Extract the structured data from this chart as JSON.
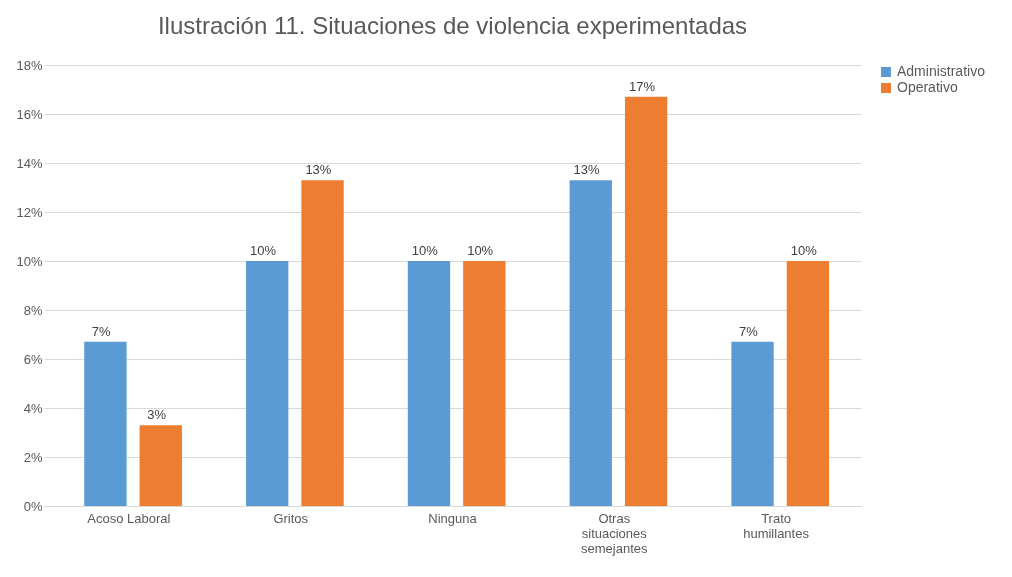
{
  "chart_data": {
    "type": "bar",
    "title": "Ilustración 11. Situaciones de violencia experimentadas",
    "categories": [
      "Acoso Laboral",
      "Gritos",
      "Ninguna",
      "Otras situaciones semejantes",
      "Trato humillantes"
    ],
    "series": [
      {
        "name": "Administrativo",
        "color": "#5b9bd5",
        "values": [
          6.7,
          10,
          10,
          13.3,
          6.7
        ],
        "value_labels": [
          "7%",
          "10%",
          "10%",
          "13%",
          "7%"
        ]
      },
      {
        "name": "Operativo",
        "color": "#ed7d31",
        "values": [
          3.3,
          13.3,
          10,
          16.7,
          10
        ],
        "value_labels": [
          "3%",
          "13%",
          "10%",
          "17%",
          "10%"
        ]
      }
    ],
    "ylim": [
      0,
      18
    ],
    "yticks": [
      {
        "value": 0,
        "label": "0%"
      },
      {
        "value": 2,
        "label": "2%"
      },
      {
        "value": 4,
        "label": "4%"
      },
      {
        "value": 6,
        "label": "6%"
      },
      {
        "value": 8,
        "label": "8%"
      },
      {
        "value": 10,
        "label": "10%"
      },
      {
        "value": 12,
        "label": "12%"
      },
      {
        "value": 14,
        "label": "14%"
      },
      {
        "value": 16,
        "label": "16%"
      },
      {
        "value": 18,
        "label": "18%"
      }
    ],
    "grid": "y",
    "legend": "right"
  }
}
